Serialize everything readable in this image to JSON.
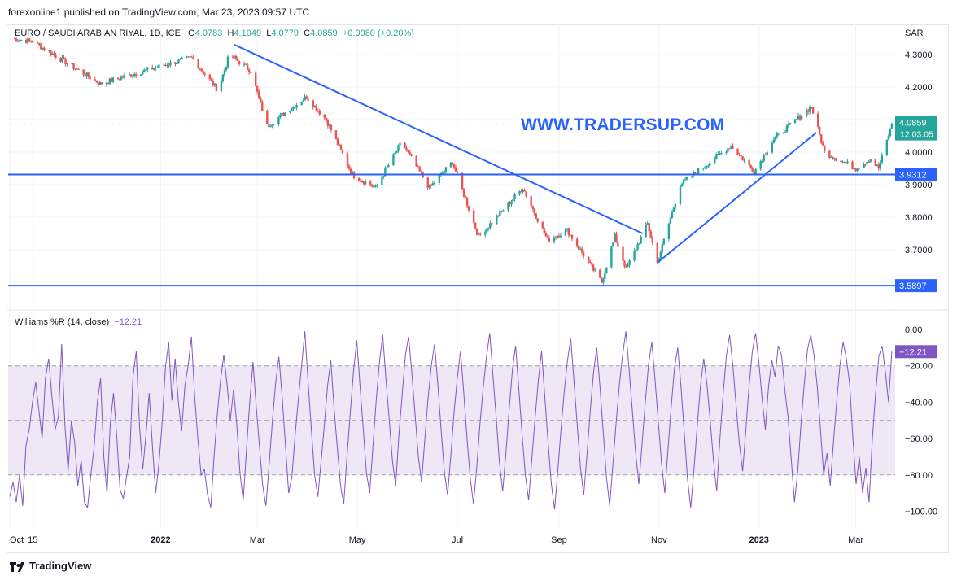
{
  "header": {
    "publish_line": "forexonline1 published on TradingView.com, Mar 23, 2023 09:57 UTC"
  },
  "legend": {
    "symbol": "EURO / SAUDI ARABIAN RIYAL, 1D, ICE",
    "o_label": "O",
    "o_value": "4.0783",
    "h_label": "H",
    "h_value": "4.1049",
    "l_label": "L",
    "l_value": "4.0779",
    "c_label": "C",
    "c_value": "4.0859",
    "change": "+0.0080 (+0.20%)"
  },
  "currency": "SAR",
  "watermark": "WWW.TRADERSUP.COM",
  "indicator_legend": {
    "name": "Williams %R (14, close)",
    "value": "−12.21"
  },
  "footer": {
    "brand": "TradingView"
  },
  "colors": {
    "up": "#26a69a",
    "down": "#ef5350",
    "line": "#2962ff",
    "wr": "#7e57c2",
    "band": "#ede7f6",
    "grid": "#f0f3fa"
  },
  "chart_data": [
    {
      "type": "candlestick",
      "title": "EURO / SAUDI ARABIAN RIYAL, 1D, ICE",
      "y_axis_ticks": [
        "4.3000",
        "4.2000",
        "4.1000",
        "4.0000",
        "3.9000",
        "3.8000",
        "3.7000",
        "3.6000"
      ],
      "ylim": [
        3.565,
        4.355
      ],
      "x_axis_ticks": [
        "Oct",
        "15",
        "2022",
        "Mar",
        "May",
        "Jul",
        "Sep",
        "Nov",
        "2023",
        "Mar"
      ],
      "price_path_keypoints": [
        {
          "d": "2021-10-01",
          "p": 4.35
        },
        {
          "d": "2021-10-15",
          "p": 4.34
        },
        {
          "d": "2021-11-25",
          "p": 4.21
        },
        {
          "d": "2022-01-05",
          "p": 4.27
        },
        {
          "d": "2022-01-20",
          "p": 4.29
        },
        {
          "d": "2022-02-05",
          "p": 4.19
        },
        {
          "d": "2022-02-12",
          "p": 4.3
        },
        {
          "d": "2022-02-25",
          "p": 4.25
        },
        {
          "d": "2022-03-07",
          "p": 4.08
        },
        {
          "d": "2022-03-31",
          "p": 4.17
        },
        {
          "d": "2022-04-12",
          "p": 4.1
        },
        {
          "d": "2022-04-28",
          "p": 3.93
        },
        {
          "d": "2022-05-12",
          "p": 3.89
        },
        {
          "d": "2022-05-28",
          "p": 4.03
        },
        {
          "d": "2022-06-14",
          "p": 3.89
        },
        {
          "d": "2022-06-28",
          "p": 3.97
        },
        {
          "d": "2022-07-14",
          "p": 3.74
        },
        {
          "d": "2022-08-10",
          "p": 3.89
        },
        {
          "d": "2022-08-25",
          "p": 3.73
        },
        {
          "d": "2022-09-06",
          "p": 3.76
        },
        {
          "d": "2022-09-27",
          "p": 3.6
        },
        {
          "d": "2022-10-05",
          "p": 3.74
        },
        {
          "d": "2022-10-12",
          "p": 3.64
        },
        {
          "d": "2022-10-25",
          "p": 3.78
        },
        {
          "d": "2022-10-31",
          "p": 3.66
        },
        {
          "d": "2022-11-14",
          "p": 3.9
        },
        {
          "d": "2022-12-15",
          "p": 4.02
        },
        {
          "d": "2022-12-29",
          "p": 3.94
        },
        {
          "d": "2023-01-10",
          "p": 4.04
        },
        {
          "d": "2023-02-02",
          "p": 4.14
        },
        {
          "d": "2023-02-10",
          "p": 4.0
        },
        {
          "d": "2023-03-01",
          "p": 3.95
        },
        {
          "d": "2023-03-10",
          "p": 3.98
        },
        {
          "d": "2023-03-15",
          "p": 3.95
        },
        {
          "d": "2023-03-23",
          "p": 4.0859
        }
      ],
      "last_price_label": "4.0859",
      "countdown_label": "12:03:05",
      "horizontal_levels": [
        {
          "value": 3.9312,
          "label": "3.9312"
        },
        {
          "value": 3.5897,
          "label": "3.5897"
        }
      ],
      "trend_lines": [
        {
          "from": {
            "d": "2022-02-15",
            "p": 4.33
          },
          "to": {
            "d": "2022-10-22",
            "p": 3.75
          }
        },
        {
          "from": {
            "d": "2022-10-31",
            "p": 3.66
          },
          "to": {
            "d": "2023-02-05",
            "p": 4.06
          }
        }
      ]
    },
    {
      "type": "line",
      "title": "Williams %R (14, close)",
      "y_axis_ticks": [
        "0.00",
        "−20.00",
        "−40.00",
        "−60.00",
        "−80.00",
        "−100.00"
      ],
      "ylim": [
        -100,
        0
      ],
      "bands": [
        -20,
        -50,
        -80
      ],
      "last_value": -12.21,
      "last_value_label": "−12.21",
      "values": [
        -92,
        -84,
        -95,
        -80,
        -97,
        -64,
        -55,
        -40,
        -29,
        -45,
        -60,
        -27,
        -16,
        -37,
        -55,
        -48,
        -8,
        -52,
        -78,
        -50,
        -62,
        -86,
        -72,
        -95,
        -98,
        -80,
        -65,
        -40,
        -27,
        -70,
        -90,
        -52,
        -35,
        -59,
        -88,
        -93,
        -81,
        -70,
        -26,
        -12,
        -53,
        -77,
        -58,
        -35,
        -64,
        -90,
        -74,
        -51,
        -21,
        -7,
        -39,
        -16,
        -40,
        -56,
        -31,
        -20,
        -4,
        -36,
        -60,
        -80,
        -77,
        -91,
        -98,
        -70,
        -47,
        -28,
        -14,
        -30,
        -50,
        -33,
        -52,
        -79,
        -94,
        -66,
        -40,
        -18,
        -42,
        -64,
        -86,
        -97,
        -74,
        -50,
        -29,
        -15,
        -37,
        -63,
        -90,
        -81,
        -58,
        -38,
        -20,
        -1,
        -29,
        -55,
        -80,
        -92,
        -73,
        -53,
        -31,
        -17,
        -43,
        -65,
        -86,
        -96,
        -70,
        -46,
        -23,
        -6,
        -31,
        -55,
        -79,
        -90,
        -64,
        -39,
        -18,
        -3,
        -27,
        -49,
        -72,
        -86,
        -58,
        -36,
        -14,
        -4,
        -24,
        -47,
        -70,
        -84,
        -60,
        -38,
        -20,
        -8,
        -30,
        -55,
        -78,
        -91,
        -70,
        -46,
        -27,
        -12,
        -35,
        -60,
        -82,
        -96,
        -76,
        -52,
        -32,
        -15,
        -2,
        -25,
        -48,
        -73,
        -89,
        -68,
        -44,
        -22,
        -9,
        -33,
        -58,
        -80,
        -94,
        -71,
        -49,
        -28,
        -12,
        -37,
        -62,
        -85,
        -99,
        -78,
        -55,
        -34,
        -17,
        -5,
        -29,
        -53,
        -76,
        -91,
        -69,
        -45,
        -24,
        -10,
        -31,
        -56,
        -81,
        -97,
        -74,
        -51,
        -30,
        -14,
        -1,
        -22,
        -45,
        -68,
        -85,
        -63,
        -40,
        -19,
        -7,
        -28,
        -51,
        -74,
        -90,
        -66,
        -42,
        -21,
        -10,
        -32,
        -57,
        -82,
        -98,
        -77,
        -53,
        -31,
        -16,
        -30,
        -50,
        -72,
        -89,
        -60,
        -35,
        -14,
        -3,
        -20,
        -42,
        -63,
        -78,
        -55,
        -31,
        -12,
        -2,
        -18,
        -38,
        -55,
        -31,
        -17,
        -26,
        -9,
        -14,
        -33,
        -48,
        -72,
        -95,
        -78,
        -52,
        -30,
        -11,
        -3,
        -14,
        -31,
        -55,
        -80,
        -68,
        -86,
        -62,
        -40,
        -20,
        -7,
        -16,
        -30,
        -60,
        -85,
        -70,
        -90,
        -76,
        -95,
        -60,
        -35,
        -15,
        -9,
        -23,
        -40,
        -12.21
      ]
    }
  ]
}
